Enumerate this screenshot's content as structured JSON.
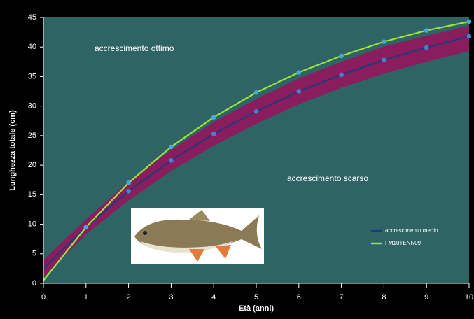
{
  "chart_data": {
    "type": "line",
    "x_label": "Età (anni)",
    "y_label": "Lunghezza totale (cm)",
    "x": [
      0,
      1,
      2,
      3,
      4,
      5,
      6,
      7,
      8,
      9,
      10
    ],
    "series": [
      {
        "name": "accrescimento medio",
        "color": "#1f3a7a",
        "marker_color": "#4a7fd0",
        "values": [
          2.5,
          9.5,
          15.6,
          20.8,
          25.3,
          29.1,
          32.5,
          35.3,
          37.8,
          39.9,
          41.8
        ]
      },
      {
        "name": "FM10TENN09",
        "color": "#9be33c",
        "marker_color": "#4aa8d8",
        "values": [
          0.5,
          9.5,
          17,
          23.1,
          28.1,
          32.3,
          35.7,
          38.5,
          40.9,
          42.8,
          44.3
        ]
      }
    ],
    "band": {
      "color": "#8a1d5e",
      "upper": [
        4,
        10.8,
        17.2,
        22.6,
        27.3,
        31.2,
        34.7,
        37.5,
        40.1,
        41.9,
        43.6
      ],
      "lower": [
        1,
        8.3,
        14,
        19,
        23.3,
        27,
        30.3,
        33.1,
        35.5,
        37.5,
        39.3
      ]
    },
    "annotations": [
      "accrescimento ottimo",
      "accrescimento scarso"
    ],
    "xlim": [
      0,
      10
    ],
    "xticks": [
      0,
      1,
      2,
      3,
      4,
      5,
      6,
      7,
      8,
      9,
      10
    ],
    "ylim": [
      0,
      45
    ],
    "yticks": [
      0,
      5,
      10,
      15,
      20,
      25,
      30,
      35,
      40,
      45
    ],
    "plot_color": "#2f6464"
  }
}
